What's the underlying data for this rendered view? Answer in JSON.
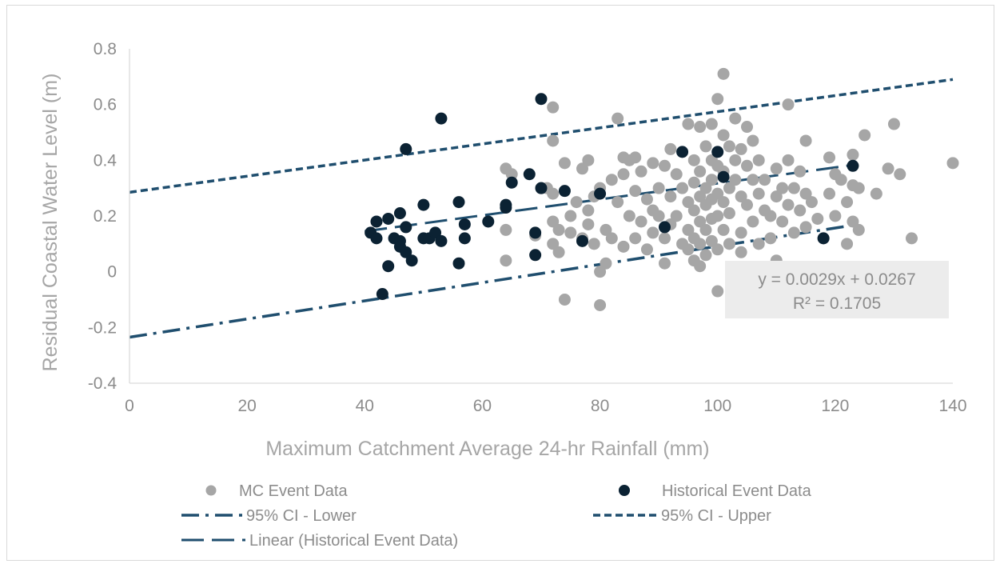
{
  "colors": {
    "mc": "#a6a6a6",
    "historical": "#0b2233",
    "ci": "#1f4e6e",
    "trend": "#1f4e6e",
    "axis_text": "#8c8c8c",
    "eq_bg": "#ececec"
  },
  "chart_data": {
    "type": "scatter",
    "xlabel": "Maximum  Catchment Average 24-hr Rainfall (mm)",
    "ylabel": "Residual Coastal Water Level (m)",
    "xlim": [
      0,
      140
    ],
    "ylim": [
      -0.4,
      0.8
    ],
    "x_ticks": [
      "0",
      "20",
      "40",
      "60",
      "80",
      "100",
      "120",
      "140"
    ],
    "y_ticks": [
      "0.8",
      "0.6",
      "0.4",
      "0.2",
      "0",
      "-0.2",
      "-0.4"
    ],
    "grid": false,
    "legend_position": "bottom",
    "series": [
      {
        "name": "MC Event Data",
        "kind": "scatter",
        "points": [
          [
            64,
            0.37
          ],
          [
            64,
            0.15
          ],
          [
            64,
            0.04
          ],
          [
            65,
            0.35
          ],
          [
            69,
            0.13
          ],
          [
            70,
            0.3
          ],
          [
            71,
            0.3
          ],
          [
            72,
            0.59
          ],
          [
            72,
            0.47
          ],
          [
            72,
            0.28
          ],
          [
            72,
            0.18
          ],
          [
            72,
            0.1
          ],
          [
            73,
            0.15
          ],
          [
            73,
            0.07
          ],
          [
            74,
            -0.1
          ],
          [
            74,
            0.39
          ],
          [
            75,
            0.2
          ],
          [
            75,
            0.14
          ],
          [
            76,
            0.25
          ],
          [
            77,
            0.12
          ],
          [
            77,
            0.37
          ],
          [
            78,
            0.22
          ],
          [
            78,
            0.4
          ],
          [
            78,
            0.17
          ],
          [
            79,
            0.27
          ],
          [
            79,
            0.1
          ],
          [
            80,
            -0.12
          ],
          [
            80,
            0.0
          ],
          [
            80,
            0.3
          ],
          [
            81,
            0.15
          ],
          [
            81,
            0.03
          ],
          [
            82,
            0.33
          ],
          [
            82,
            0.12
          ],
          [
            83,
            0.55
          ],
          [
            83,
            0.25
          ],
          [
            84,
            0.35
          ],
          [
            84,
            0.09
          ],
          [
            84,
            0.41
          ],
          [
            85,
            0.4
          ],
          [
            85,
            0.2
          ],
          [
            86,
            0.29
          ],
          [
            86,
            0.12
          ],
          [
            86,
            0.41
          ],
          [
            87,
            0.36
          ],
          [
            87,
            0.18
          ],
          [
            88,
            0.26
          ],
          [
            88,
            0.08
          ],
          [
            89,
            0.39
          ],
          [
            89,
            0.22
          ],
          [
            89,
            0.14
          ],
          [
            90,
            0.3
          ],
          [
            90,
            0.2
          ],
          [
            91,
            0.38
          ],
          [
            91,
            0.12
          ],
          [
            91,
            0.03
          ],
          [
            92,
            0.44
          ],
          [
            92,
            0.27
          ],
          [
            92,
            0.17
          ],
          [
            93,
            0.35
          ],
          [
            93,
            0.2
          ],
          [
            94,
            0.3
          ],
          [
            94,
            0.1
          ],
          [
            95,
            0.53
          ],
          [
            95,
            0.25
          ],
          [
            95,
            0.15
          ],
          [
            95,
            0.08
          ],
          [
            96,
            0.4
          ],
          [
            96,
            0.32
          ],
          [
            96,
            0.22
          ],
          [
            96,
            0.12
          ],
          [
            96,
            0.04
          ],
          [
            97,
            0.52
          ],
          [
            97,
            0.36
          ],
          [
            97,
            0.27
          ],
          [
            97,
            0.18
          ],
          [
            97,
            0.1
          ],
          [
            97,
            0.02
          ],
          [
            98,
            0.45
          ],
          [
            98,
            0.3
          ],
          [
            98,
            0.24
          ],
          [
            98,
            0.15
          ],
          [
            98,
            0.06
          ],
          [
            99,
            0.53
          ],
          [
            99,
            0.4
          ],
          [
            99,
            0.33
          ],
          [
            99,
            0.26
          ],
          [
            99,
            0.19
          ],
          [
            99,
            0.11
          ],
          [
            100,
            0.62
          ],
          [
            100,
            0.38
          ],
          [
            100,
            0.28
          ],
          [
            100,
            0.2
          ],
          [
            100,
            0.08
          ],
          [
            100,
            -0.07
          ],
          [
            101,
            0.71
          ],
          [
            101,
            0.49
          ],
          [
            101,
            0.36
          ],
          [
            101,
            0.25
          ],
          [
            101,
            0.15
          ],
          [
            102,
            0.45
          ],
          [
            102,
            0.3
          ],
          [
            102,
            0.21
          ],
          [
            102,
            0.1
          ],
          [
            103,
            0.55
          ],
          [
            103,
            0.4
          ],
          [
            103,
            0.33
          ],
          [
            104,
            0.44
          ],
          [
            104,
            0.27
          ],
          [
            104,
            0.14
          ],
          [
            104,
            0.07
          ],
          [
            105,
            0.52
          ],
          [
            105,
            0.38
          ],
          [
            105,
            0.24
          ],
          [
            106,
            0.47
          ],
          [
            106,
            0.33
          ],
          [
            106,
            0.18
          ],
          [
            107,
            0.4
          ],
          [
            107,
            0.28
          ],
          [
            107,
            0.1
          ],
          [
            108,
            0.33
          ],
          [
            108,
            0.22
          ],
          [
            109,
            0.2
          ],
          [
            109,
            0.12
          ],
          [
            110,
            0.37
          ],
          [
            110,
            0.27
          ],
          [
            110,
            0.04
          ],
          [
            111,
            0.3
          ],
          [
            111,
            0.18
          ],
          [
            112,
            0.6
          ],
          [
            112,
            0.4
          ],
          [
            112,
            0.24
          ],
          [
            113,
            0.3
          ],
          [
            113,
            0.14
          ],
          [
            114,
            0.36
          ],
          [
            114,
            0.22
          ],
          [
            115,
            0.47
          ],
          [
            115,
            0.28
          ],
          [
            115,
            0.16
          ],
          [
            116,
            0.25
          ],
          [
            117,
            0.19
          ],
          [
            118,
            0.12
          ],
          [
            119,
            0.41
          ],
          [
            119,
            0.28
          ],
          [
            120,
            0.35
          ],
          [
            120,
            0.2
          ],
          [
            121,
            0.33
          ],
          [
            122,
            0.25
          ],
          [
            122,
            0.1
          ],
          [
            123,
            0.42
          ],
          [
            123,
            0.31
          ],
          [
            123,
            0.18
          ],
          [
            124,
            0.3
          ],
          [
            124,
            0.15
          ],
          [
            125,
            0.49
          ],
          [
            127,
            0.28
          ],
          [
            129,
            0.37
          ],
          [
            130,
            0.53
          ],
          [
            131,
            0.35
          ],
          [
            133,
            0.12
          ],
          [
            140,
            0.39
          ]
        ]
      },
      {
        "name": "Historical Event Data",
        "kind": "scatter",
        "points": [
          [
            41,
            0.14
          ],
          [
            42,
            0.12
          ],
          [
            42,
            0.18
          ],
          [
            43,
            -0.08
          ],
          [
            44,
            0.02
          ],
          [
            44,
            0.19
          ],
          [
            45,
            0.12
          ],
          [
            46,
            0.11
          ],
          [
            46,
            0.09
          ],
          [
            46,
            0.21
          ],
          [
            47,
            0.07
          ],
          [
            47,
            0.16
          ],
          [
            47,
            0.44
          ],
          [
            48,
            0.04
          ],
          [
            50,
            0.24
          ],
          [
            50,
            0.12
          ],
          [
            51,
            0.12
          ],
          [
            52,
            0.14
          ],
          [
            53,
            0.11
          ],
          [
            53,
            0.55
          ],
          [
            56,
            0.03
          ],
          [
            56,
            0.25
          ],
          [
            57,
            0.17
          ],
          [
            57,
            0.12
          ],
          [
            61,
            0.18
          ],
          [
            64,
            0.24
          ],
          [
            64,
            0.23
          ],
          [
            65,
            0.32
          ],
          [
            68,
            0.35
          ],
          [
            69,
            0.06
          ],
          [
            69,
            0.14
          ],
          [
            70,
            0.62
          ],
          [
            70,
            0.3
          ],
          [
            74,
            0.29
          ],
          [
            77,
            0.11
          ],
          [
            80,
            0.28
          ],
          [
            91,
            0.16
          ],
          [
            94,
            0.43
          ],
          [
            100,
            0.43
          ],
          [
            101,
            0.34
          ],
          [
            118,
            0.12
          ],
          [
            123,
            0.38
          ]
        ]
      },
      {
        "name": "95% CI - Lower",
        "kind": "line",
        "style": "dash-dot",
        "x": [
          0,
          124
        ],
        "y": [
          -0.235,
          0.17
        ]
      },
      {
        "name": "95% CI - Upper",
        "kind": "line",
        "style": "dashed",
        "x": [
          0,
          140
        ],
        "y": [
          0.285,
          0.69
        ]
      },
      {
        "name": "Linear (Historical Event Data)",
        "kind": "line",
        "style": "long-dash",
        "x": [
          40,
          123
        ],
        "y": [
          0.145,
          0.383
        ]
      }
    ],
    "annotation": {
      "equation": "y = 0.0029x + 0.0267",
      "r_squared": "R² = 0.1705"
    }
  }
}
